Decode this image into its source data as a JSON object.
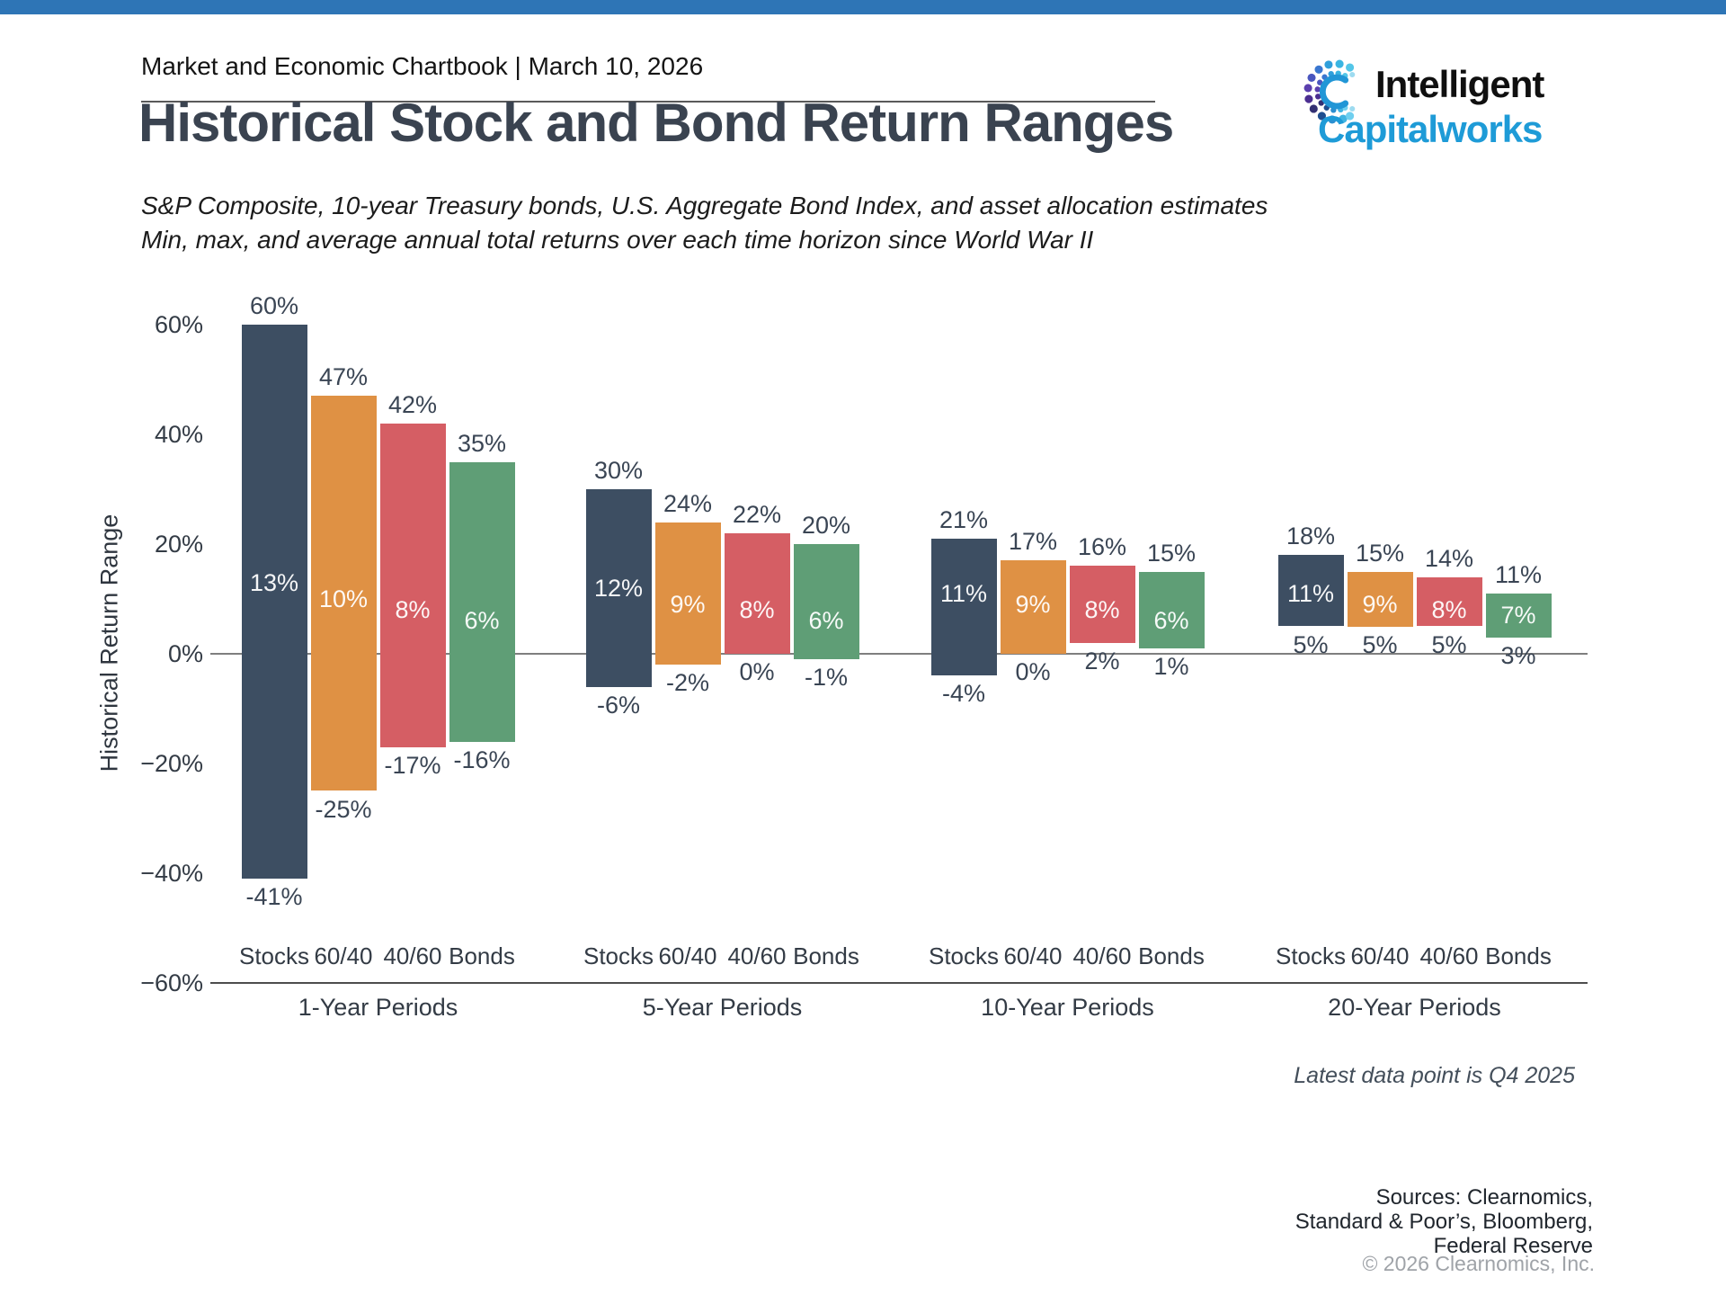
{
  "top_bar_color": "#2e75b6",
  "header": {
    "kicker": "Market and Economic Chartbook | March 10, 2026"
  },
  "logo": {
    "line1": "Intelligent",
    "line2": "Capitalworks",
    "line2_color": "#1e9bd7",
    "icon": "dotted-burst-c-logo"
  },
  "title": "Historical Stock and Bond Return Ranges",
  "subtitle_line1": "S&P Composite, 10-year Treasury bonds, U.S. Aggregate Bond Index, and asset allocation estimates",
  "subtitle_line2": "Min, max, and average annual total returns over each time horizon since World War II",
  "chart_data": {
    "type": "bar",
    "variant": "floating-range-bars",
    "title": "Historical Stock and Bond Return Ranges",
    "ylabel": "Historical Return Range",
    "ylim": [
      -60,
      60
    ],
    "grid": "off",
    "legend": "none",
    "ytick_values": [
      60,
      40,
      20,
      0,
      -20,
      -40,
      -60
    ],
    "ytick_labels": [
      "60%",
      "40%",
      "20%",
      "0%",
      "−20%",
      "−40%",
      "−60%"
    ],
    "series_labels": [
      "Stocks",
      "60/40",
      "40/60",
      "Bonds"
    ],
    "colors": {
      "stocks": "#3d4e62",
      "60/40": "#df9144",
      "40/60": "#d55e64",
      "bonds": "#5f9e76"
    },
    "groups": [
      {
        "label": "1-Year Periods",
        "bars": [
          {
            "name": "Stocks",
            "max": 60,
            "avg": 13,
            "min": -41
          },
          {
            "name": "60/40",
            "max": 47,
            "avg": 10,
            "min": -25
          },
          {
            "name": "40/60",
            "max": 42,
            "avg": 8,
            "min": -17
          },
          {
            "name": "Bonds",
            "max": 35,
            "avg": 6,
            "min": -16
          }
        ]
      },
      {
        "label": "5-Year Periods",
        "bars": [
          {
            "name": "Stocks",
            "max": 30,
            "avg": 12,
            "min": -6
          },
          {
            "name": "60/40",
            "max": 24,
            "avg": 9,
            "min": -2
          },
          {
            "name": "40/60",
            "max": 22,
            "avg": 8,
            "min": 0
          },
          {
            "name": "Bonds",
            "max": 20,
            "avg": 6,
            "min": -1
          }
        ]
      },
      {
        "label": "10-Year Periods",
        "bars": [
          {
            "name": "Stocks",
            "max": 21,
            "avg": 11,
            "min": -4
          },
          {
            "name": "60/40",
            "max": 17,
            "avg": 9,
            "min": 0
          },
          {
            "name": "40/60",
            "max": 16,
            "avg": 8,
            "min": 2
          },
          {
            "name": "Bonds",
            "max": 15,
            "avg": 6,
            "min": 1
          }
        ]
      },
      {
        "label": "20-Year Periods",
        "bars": [
          {
            "name": "Stocks",
            "max": 18,
            "avg": 11,
            "min": 5
          },
          {
            "name": "60/40",
            "max": 15,
            "avg": 9,
            "min": 5
          },
          {
            "name": "40/60",
            "max": 14,
            "avg": 8,
            "min": 5
          },
          {
            "name": "Bonds",
            "max": 11,
            "avg": 7,
            "min": 3
          }
        ]
      }
    ]
  },
  "notes": {
    "latest": "Latest data point is Q4 2025"
  },
  "sources": {
    "line1": "Sources: Clearnomics,",
    "line2": "Standard & Poor’s, Bloomberg,",
    "line3": "Federal Reserve",
    "copyright": "© 2026 Clearnomics, Inc."
  }
}
